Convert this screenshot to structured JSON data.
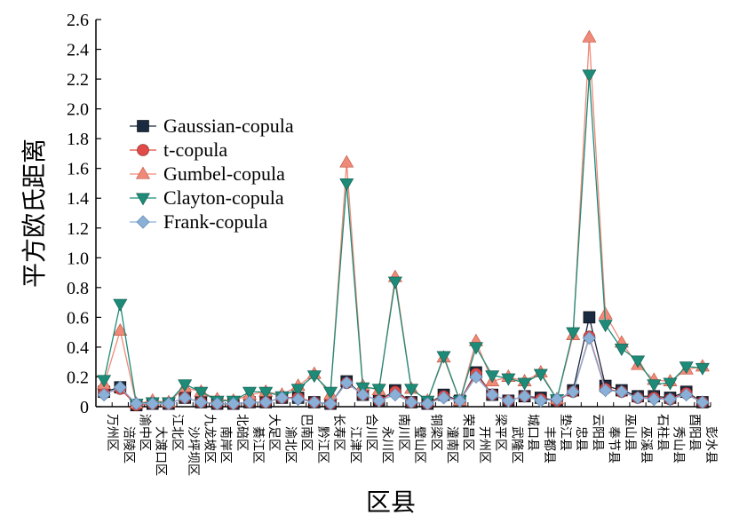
{
  "chart_data": {
    "type": "line",
    "title": "",
    "xlabel": "区县",
    "ylabel": "平方欧氏距离",
    "ylim": [
      0,
      2.6
    ],
    "yticks": [
      "0",
      "0.2",
      "0.4",
      "0.6",
      "0.8",
      "1.0",
      "1.2",
      "1.4",
      "1.6",
      "1.8",
      "2.0",
      "2.2",
      "2.4",
      "2.6"
    ],
    "grid": false,
    "legend_position": "upper-left",
    "categories": [
      "万州区",
      "涪陵区",
      "渝中区",
      "大渡口区",
      "江北区",
      "沙坪坝区",
      "九龙坡区",
      "南岸区",
      "北碚区",
      "綦江区",
      "大足区",
      "渝北区",
      "巴南区",
      "黔江区",
      "长寿区",
      "江津区",
      "合川区",
      "永川区",
      "南川区",
      "璧山区",
      "铜梁区",
      "潼南区",
      "荣昌区",
      "开州区",
      "梁平区",
      "武隆区",
      "城口县",
      "丰都县",
      "垫江县",
      "忠县",
      "云阳县",
      "奉节县",
      "巫山县",
      "巫溪县",
      "石柱县",
      "秀山县",
      "酉阳县",
      "彭水县"
    ],
    "series": [
      {
        "name": "Gaussian-copula",
        "color": "#1a2a40",
        "marker": "square",
        "values": [
          0.1,
          0.13,
          0.01,
          0.02,
          0.02,
          0.06,
          0.03,
          0.02,
          0.02,
          0.03,
          0.03,
          0.06,
          0.06,
          0.03,
          0.02,
          0.17,
          0.08,
          0.04,
          0.11,
          0.03,
          0.02,
          0.08,
          0.04,
          0.23,
          0.08,
          0.04,
          0.07,
          0.06,
          0.04,
          0.11,
          0.6,
          0.14,
          0.11,
          0.07,
          0.07,
          0.06,
          0.1,
          0.03
        ]
      },
      {
        "name": "t-copula",
        "color": "#e04a48",
        "marker": "circle",
        "values": [
          0.09,
          0.12,
          0.01,
          0.02,
          0.02,
          0.06,
          0.03,
          0.02,
          0.02,
          0.03,
          0.03,
          0.06,
          0.06,
          0.03,
          0.02,
          0.16,
          0.08,
          0.04,
          0.1,
          0.03,
          0.02,
          0.07,
          0.04,
          0.22,
          0.08,
          0.04,
          0.07,
          0.05,
          0.04,
          0.1,
          0.47,
          0.12,
          0.1,
          0.06,
          0.06,
          0.05,
          0.09,
          0.03
        ]
      },
      {
        "name": "Gumbel-copula",
        "color": "#f08a78",
        "marker": "triangle-up",
        "values": [
          0.15,
          0.51,
          0.02,
          0.04,
          0.03,
          0.13,
          0.1,
          0.05,
          0.04,
          0.08,
          0.1,
          0.08,
          0.14,
          0.22,
          0.08,
          1.64,
          0.14,
          0.11,
          0.87,
          0.12,
          0.04,
          0.33,
          0.04,
          0.44,
          0.17,
          0.2,
          0.17,
          0.23,
          0.05,
          0.48,
          2.48,
          0.62,
          0.43,
          0.28,
          0.18,
          0.17,
          0.25,
          0.27
        ]
      },
      {
        "name": "Clayton-copula",
        "color": "#1e8a78",
        "marker": "triangle-down",
        "values": [
          0.18,
          0.69,
          0.02,
          0.03,
          0.03,
          0.15,
          0.1,
          0.04,
          0.04,
          0.1,
          0.1,
          0.07,
          0.12,
          0.21,
          0.1,
          1.5,
          0.13,
          0.12,
          0.84,
          0.12,
          0.04,
          0.34,
          0.04,
          0.4,
          0.21,
          0.19,
          0.16,
          0.22,
          0.05,
          0.5,
          2.23,
          0.55,
          0.39,
          0.31,
          0.15,
          0.16,
          0.27,
          0.26
        ]
      },
      {
        "name": "Frank-copula",
        "color": "#8ab0d8",
        "marker": "diamond",
        "values": [
          0.08,
          0.13,
          0.02,
          0.02,
          0.02,
          0.06,
          0.03,
          0.02,
          0.02,
          0.03,
          0.03,
          0.06,
          0.05,
          0.03,
          0.02,
          0.16,
          0.08,
          0.04,
          0.08,
          0.03,
          0.02,
          0.06,
          0.04,
          0.2,
          0.08,
          0.04,
          0.07,
          0.04,
          0.05,
          0.1,
          0.46,
          0.11,
          0.1,
          0.06,
          0.05,
          0.05,
          0.08,
          0.03
        ]
      }
    ]
  }
}
